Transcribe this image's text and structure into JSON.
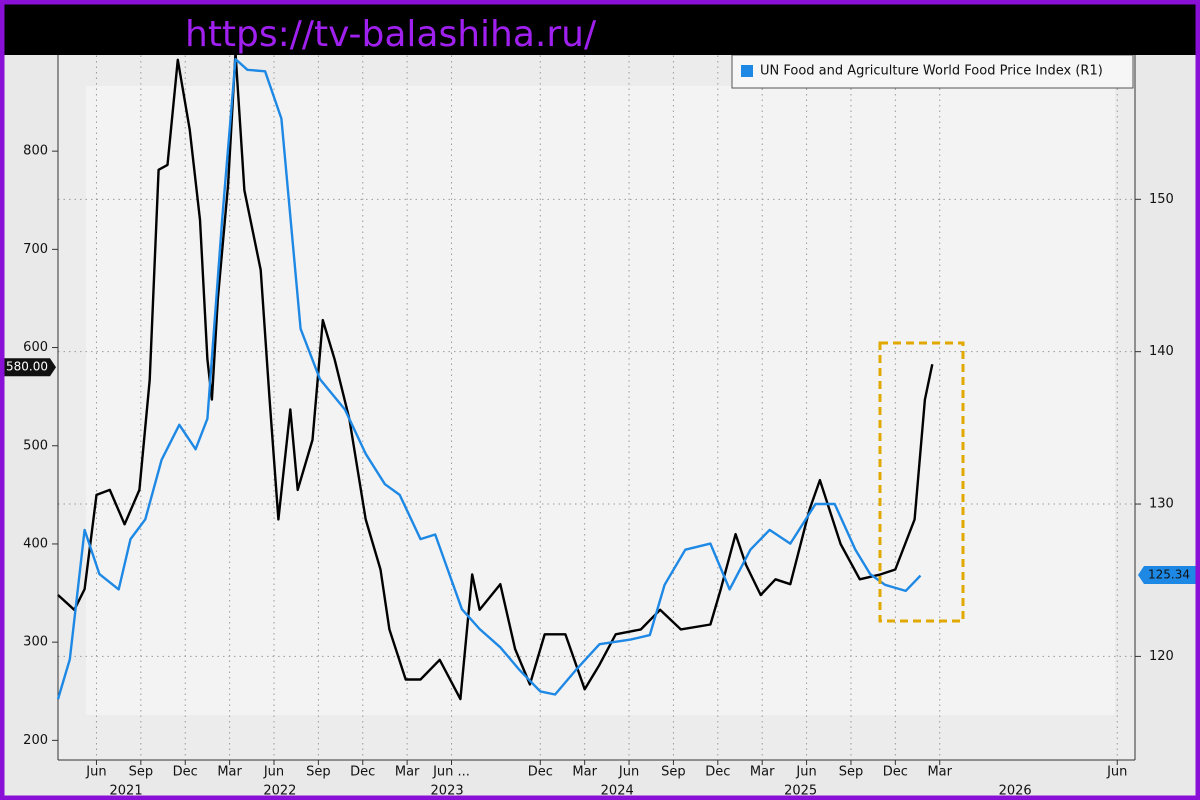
{
  "watermark": "https://tv-balashiha.ru/",
  "chart_data": {
    "type": "line",
    "legend": "UN Food and Agriculture World Food Price Index (R1)",
    "xlim": [
      2.4,
      75.2
    ],
    "xticks": [
      {
        "value": 5,
        "label": "Jun"
      },
      {
        "value": 8,
        "label": "Sep"
      },
      {
        "value": 11,
        "label": "Dec"
      },
      {
        "value": 14,
        "label": "Mar"
      },
      {
        "value": 17,
        "label": "Jun"
      },
      {
        "value": 20,
        "label": "Sep"
      },
      {
        "value": 23,
        "label": "Dec"
      },
      {
        "value": 26,
        "label": "Mar"
      },
      {
        "value": 29,
        "label": "Jun ..."
      },
      {
        "value": 35,
        "label": "Dec"
      },
      {
        "value": 38,
        "label": "Mar"
      },
      {
        "value": 41,
        "label": "Jun"
      },
      {
        "value": 44,
        "label": "Sep"
      },
      {
        "value": 47,
        "label": "Dec"
      },
      {
        "value": 50,
        "label": "Mar"
      },
      {
        "value": 53,
        "label": "Jun"
      },
      {
        "value": 56,
        "label": "Sep"
      },
      {
        "value": 59,
        "label": "Dec"
      },
      {
        "value": 62,
        "label": "Mar"
      },
      {
        "value": 74,
        "label": "Jun"
      }
    ],
    "xyears": [
      {
        "value": 7,
        "label": "2021"
      },
      {
        "value": 17.4,
        "label": "2022"
      },
      {
        "value": 28.7,
        "label": "2023"
      },
      {
        "value": 40.2,
        "label": "2024"
      },
      {
        "value": 52.6,
        "label": "2025"
      },
      {
        "value": 67.1,
        "label": "2026"
      }
    ],
    "ylim": [
      180,
      903
    ],
    "yticks": [
      200,
      300,
      400,
      500,
      600,
      700,
      800
    ],
    "y2lim": [
      113.2,
      159.8
    ],
    "y2ticks": [
      120,
      130,
      140,
      150
    ],
    "grid": true,
    "series": [
      {
        "color": "#000000",
        "axis": "y",
        "tag": {
          "value": 580,
          "label": "580.00"
        },
        "x": [
          2.4,
          3.5,
          4.2,
          5.0,
          5.9,
          6.9,
          7.9,
          8.6,
          9.2,
          9.8,
          10.5,
          11.3,
          12.0,
          12.5,
          12.8,
          13.2,
          13.9,
          14.4,
          15.0,
          16.1,
          16.7,
          17.3,
          18.1,
          18.6,
          19.6,
          20.3,
          21.1,
          22.1,
          23.2,
          24.2,
          24.8,
          25.9,
          26.9,
          28.2,
          29.6,
          30.4,
          30.9,
          32.3,
          33.3,
          34.3,
          35.3,
          36.7,
          38.0,
          39.0,
          40.1,
          41.8,
          43.1,
          44.5,
          46.5,
          47.2,
          48.2,
          48.9,
          49.9,
          50.9,
          51.9,
          53.2,
          53.9,
          55.3,
          56.6,
          58.0,
          59.0,
          60.3,
          61.0,
          61.5
        ],
        "values": [
          348,
          333,
          354,
          450,
          455,
          420,
          455,
          567,
          781,
          786,
          893,
          822,
          730,
          588,
          547,
          649,
          766,
          900,
          760,
          679,
          547,
          425,
          537,
          455,
          506,
          628,
          588,
          527,
          425,
          374,
          313,
          262,
          262,
          282,
          242,
          369,
          333,
          359,
          293,
          257,
          308,
          308,
          252,
          277,
          308,
          313,
          333,
          313,
          318,
          354,
          410,
          379,
          348,
          364,
          359,
          435,
          465,
          400,
          364,
          369,
          374,
          425,
          547,
          583
        ]
      },
      {
        "name": "UN Food and Agriculture World Food Price Index (R1)",
        "color": "#1e88e5",
        "axis": "y2",
        "tag": {
          "value": 125.34,
          "label": "125.34"
        },
        "x": [
          2.4,
          3.2,
          4.2,
          5.2,
          6.5,
          7.3,
          8.3,
          9.4,
          10.6,
          11.7,
          12.5,
          13.5,
          14.4,
          15.2,
          16.4,
          17.5,
          18.8,
          20.1,
          21.8,
          23.2,
          24.5,
          25.5,
          26.9,
          27.9,
          29.7,
          30.9,
          32.3,
          33.6,
          35.0,
          36.0,
          37.4,
          39.0,
          41.1,
          42.4,
          43.4,
          44.8,
          46.5,
          47.8,
          49.2,
          50.5,
          51.9,
          53.6,
          54.9,
          56.3,
          57.3,
          58.3,
          59.7,
          60.7
        ],
        "values": [
          117.2,
          119.8,
          128.3,
          125.4,
          124.4,
          127.7,
          129.0,
          132.9,
          135.2,
          133.6,
          135.6,
          148.7,
          159.2,
          158.5,
          158.4,
          155.3,
          141.5,
          138.2,
          136.2,
          133.3,
          131.3,
          130.6,
          127.7,
          128.0,
          123.1,
          121.8,
          120.6,
          119.1,
          117.7,
          117.5,
          119.1,
          120.8,
          121.1,
          121.4,
          124.7,
          127.0,
          127.4,
          124.4,
          127.0,
          128.3,
          127.4,
          130.0,
          130.0,
          127.0,
          125.4,
          124.7,
          124.3,
          125.3
        ]
      }
    ]
  }
}
